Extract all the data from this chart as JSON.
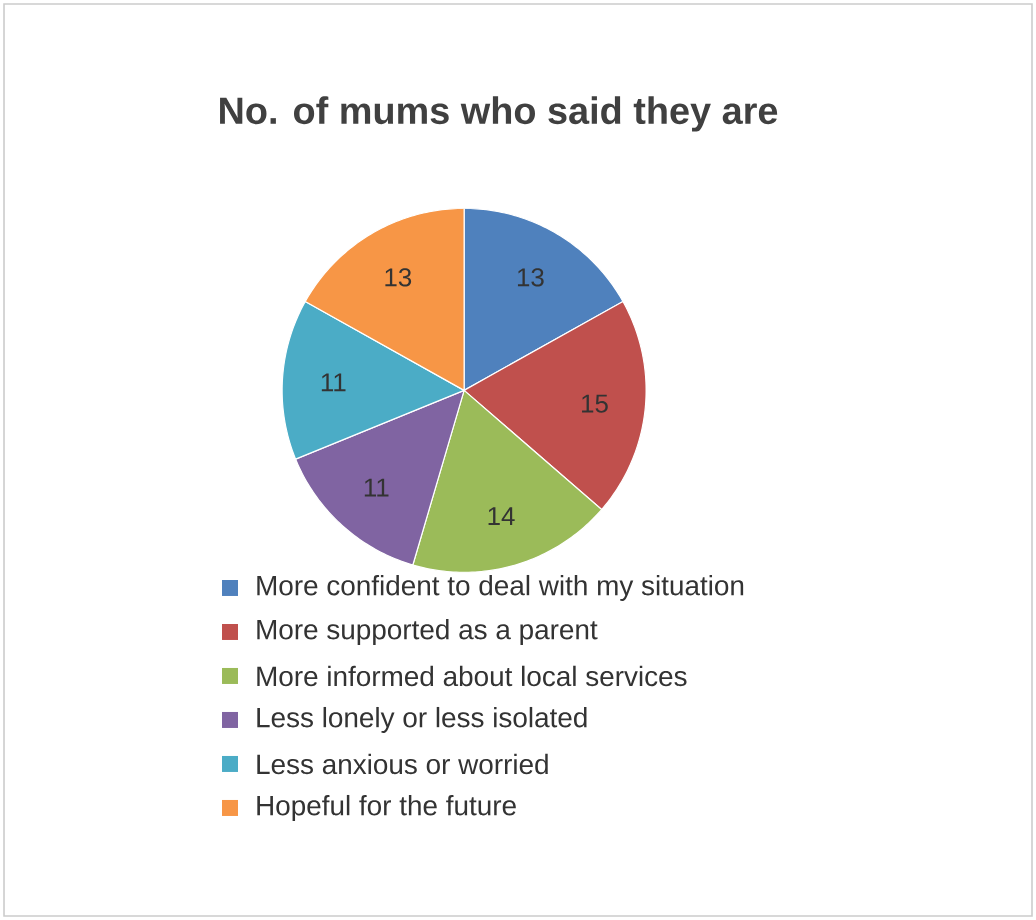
{
  "chart_data": {
    "type": "pie",
    "title": "No. of mums who said they are",
    "categories": [
      "More confident to deal with my situation",
      "More supported as a parent",
      "More informed about local services",
      "Less lonely or less isolated",
      "Less anxious or worried",
      "Hopeful for the future"
    ],
    "values": [
      13,
      15,
      14,
      11,
      11,
      13
    ],
    "colors": [
      "#4f81bd",
      "#c0504d",
      "#9bbb59",
      "#8064a2",
      "#4bacc6",
      "#f79646"
    ],
    "data_labels": true,
    "legend": "bottom"
  }
}
